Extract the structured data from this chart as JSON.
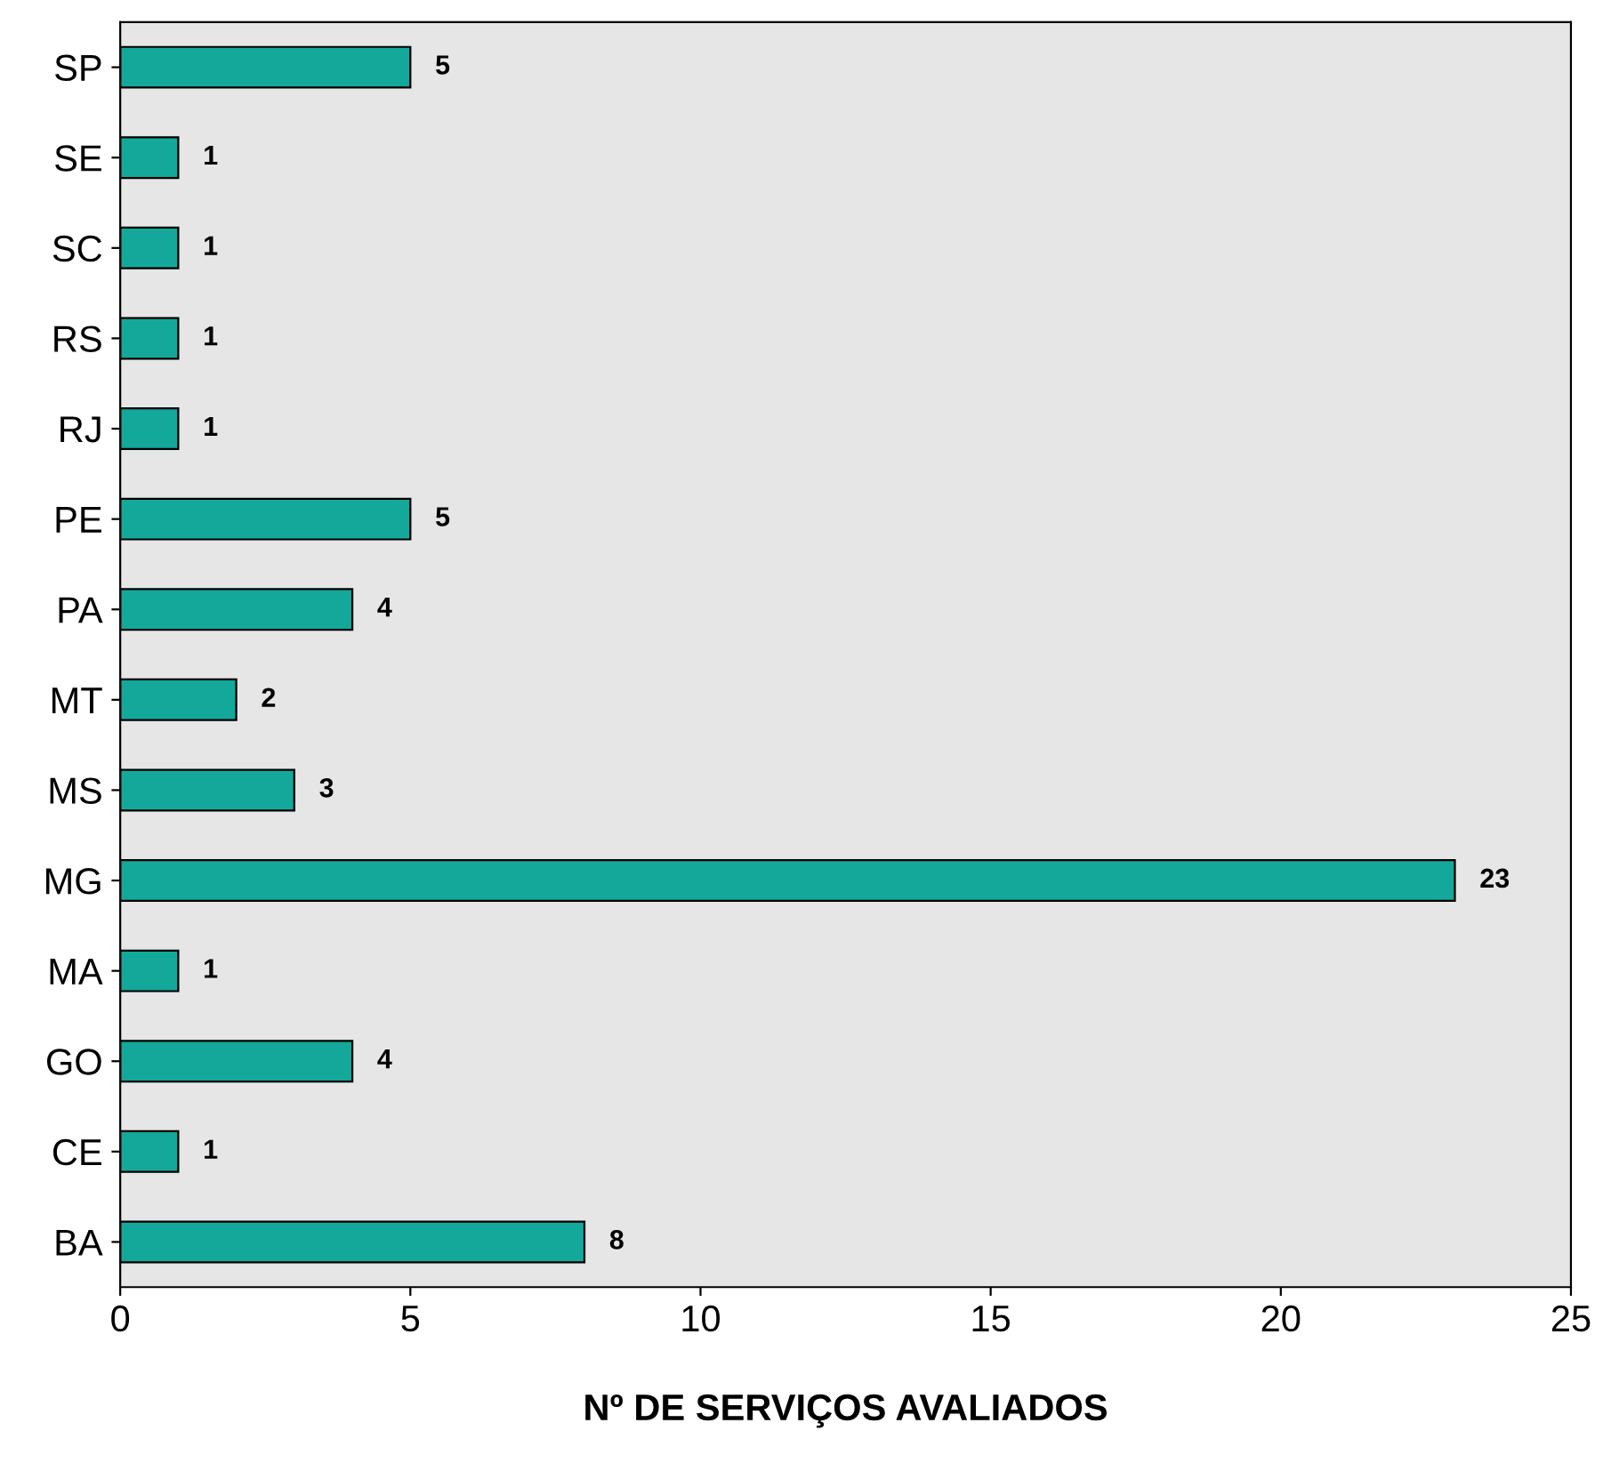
{
  "chart_data": {
    "type": "bar",
    "orientation": "horizontal",
    "xlabel": "Nº DE SERVIÇOS AVALIADOS",
    "categories": [
      "SP",
      "SE",
      "SC",
      "RS",
      "RJ",
      "PE",
      "PA",
      "MT",
      "MS",
      "MG",
      "MA",
      "GO",
      "CE",
      "BA"
    ],
    "values": [
      5,
      1,
      1,
      1,
      1,
      5,
      4,
      2,
      3,
      23,
      1,
      4,
      1,
      8
    ],
    "color": "#14a89a",
    "xlim": [
      0,
      25
    ],
    "xticks": [
      0,
      5,
      10,
      15,
      20,
      25
    ],
    "data_labels": true,
    "grid": false,
    "legend": false
  }
}
